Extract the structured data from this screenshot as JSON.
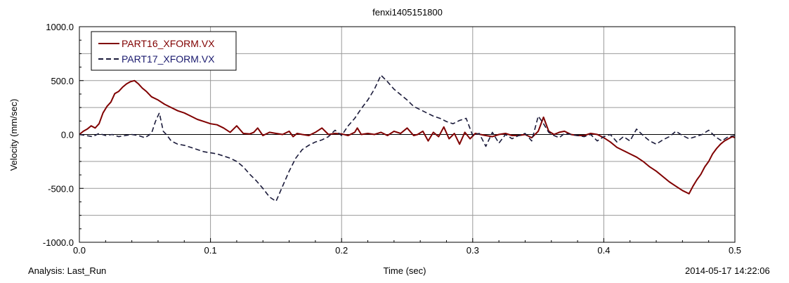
{
  "chart_data": {
    "type": "line",
    "title": "fenxi1405151800",
    "xlabel": "Time (sec)",
    "ylabel": "Velocity (mm/sec)",
    "xlim": [
      0.0,
      0.5
    ],
    "ylim": [
      -1000.0,
      1000.0
    ],
    "x_ticks": [
      0.0,
      0.1,
      0.2,
      0.3,
      0.4,
      0.5
    ],
    "x_tick_labels": [
      "0.0",
      "0.1",
      "0.2",
      "0.3",
      "0.4",
      "0.5"
    ],
    "y_ticks": [
      1000.0,
      500.0,
      0.0,
      -500.0,
      -1000.0
    ],
    "y_tick_labels": [
      "1000.0",
      "500.0",
      "0.0",
      "-500.0",
      "-1000.0"
    ],
    "grid": true,
    "legend_position": "top-left",
    "series": [
      {
        "name": "PART16_XFORM.VX",
        "color": "#800000",
        "style": "solid",
        "x": [
          0.0,
          0.003,
          0.006,
          0.009,
          0.012,
          0.015,
          0.018,
          0.021,
          0.024,
          0.027,
          0.03,
          0.033,
          0.036,
          0.039,
          0.042,
          0.045,
          0.048,
          0.051,
          0.055,
          0.06,
          0.065,
          0.07,
          0.075,
          0.08,
          0.085,
          0.09,
          0.095,
          0.1,
          0.105,
          0.11,
          0.115,
          0.12,
          0.125,
          0.13,
          0.133,
          0.136,
          0.14,
          0.145,
          0.15,
          0.155,
          0.16,
          0.163,
          0.166,
          0.17,
          0.175,
          0.18,
          0.185,
          0.19,
          0.195,
          0.2,
          0.205,
          0.21,
          0.212,
          0.215,
          0.22,
          0.225,
          0.23,
          0.235,
          0.24,
          0.245,
          0.25,
          0.255,
          0.258,
          0.262,
          0.266,
          0.27,
          0.274,
          0.278,
          0.282,
          0.286,
          0.29,
          0.294,
          0.298,
          0.302,
          0.306,
          0.31,
          0.315,
          0.32,
          0.325,
          0.33,
          0.335,
          0.34,
          0.345,
          0.35,
          0.354,
          0.358,
          0.362,
          0.366,
          0.37,
          0.375,
          0.38,
          0.385,
          0.39,
          0.395,
          0.4,
          0.405,
          0.41,
          0.415,
          0.42,
          0.425,
          0.43,
          0.435,
          0.44,
          0.445,
          0.45,
          0.455,
          0.46,
          0.465,
          0.468,
          0.471,
          0.474,
          0.477,
          0.48,
          0.483,
          0.486,
          0.489,
          0.492,
          0.495,
          0.498,
          0.5
        ],
        "y": [
          0,
          30,
          50,
          80,
          60,
          100,
          200,
          260,
          300,
          380,
          400,
          440,
          470,
          490,
          500,
          470,
          430,
          400,
          350,
          320,
          280,
          250,
          220,
          200,
          170,
          140,
          120,
          100,
          90,
          60,
          20,
          80,
          10,
          5,
          20,
          60,
          -10,
          20,
          10,
          0,
          30,
          -20,
          10,
          0,
          -10,
          20,
          60,
          0,
          10,
          5,
          -10,
          20,
          60,
          0,
          10,
          0,
          20,
          -10,
          30,
          10,
          60,
          -10,
          0,
          30,
          -60,
          20,
          -20,
          70,
          -40,
          10,
          -90,
          20,
          -40,
          10,
          0,
          -10,
          -20,
          0,
          10,
          -10,
          -10,
          0,
          -30,
          30,
          160,
          30,
          0,
          20,
          30,
          0,
          -10,
          -10,
          10,
          0,
          -30,
          -70,
          -120,
          -150,
          -180,
          -210,
          -250,
          -300,
          -340,
          -390,
          -440,
          -480,
          -520,
          -550,
          -480,
          -420,
          -370,
          -300,
          -250,
          -180,
          -130,
          -90,
          -60,
          -40,
          -20,
          -30
        ],
        "label_color": "#800000"
      },
      {
        "name": "PART17_XFORM.VX",
        "color": "#1a1a3a",
        "style": "dashed",
        "x": [
          0.0,
          0.005,
          0.01,
          0.015,
          0.02,
          0.025,
          0.03,
          0.035,
          0.04,
          0.045,
          0.05,
          0.055,
          0.058,
          0.061,
          0.064,
          0.067,
          0.07,
          0.075,
          0.08,
          0.085,
          0.09,
          0.095,
          0.1,
          0.105,
          0.11,
          0.115,
          0.12,
          0.125,
          0.13,
          0.135,
          0.14,
          0.145,
          0.15,
          0.155,
          0.16,
          0.165,
          0.17,
          0.175,
          0.18,
          0.185,
          0.19,
          0.195,
          0.2,
          0.205,
          0.21,
          0.215,
          0.22,
          0.225,
          0.23,
          0.235,
          0.24,
          0.245,
          0.25,
          0.255,
          0.26,
          0.265,
          0.27,
          0.275,
          0.28,
          0.285,
          0.29,
          0.295,
          0.3,
          0.305,
          0.31,
          0.315,
          0.32,
          0.325,
          0.33,
          0.335,
          0.34,
          0.345,
          0.35,
          0.354,
          0.358,
          0.362,
          0.366,
          0.37,
          0.375,
          0.38,
          0.385,
          0.39,
          0.395,
          0.4,
          0.405,
          0.41,
          0.415,
          0.42,
          0.425,
          0.43,
          0.435,
          0.44,
          0.445,
          0.45,
          0.455,
          0.46,
          0.465,
          0.47,
          0.475,
          0.48,
          0.485,
          0.49,
          0.495,
          0.5
        ],
        "y": [
          0,
          -10,
          -20,
          10,
          -10,
          0,
          -20,
          -10,
          0,
          -10,
          -30,
          10,
          120,
          200,
          30,
          -10,
          -60,
          -90,
          -100,
          -120,
          -140,
          -160,
          -170,
          -180,
          -200,
          -220,
          -250,
          -300,
          -370,
          -430,
          -500,
          -580,
          -620,
          -480,
          -340,
          -220,
          -140,
          -100,
          -70,
          -50,
          -20,
          40,
          -10,
          80,
          150,
          240,
          320,
          420,
          550,
          490,
          420,
          370,
          320,
          260,
          230,
          200,
          170,
          150,
          120,
          100,
          130,
          150,
          -10,
          10,
          -110,
          20,
          -80,
          0,
          -40,
          -10,
          10,
          -60,
          170,
          100,
          20,
          -10,
          -30,
          10,
          0,
          -10,
          -20,
          0,
          -60,
          -20,
          0,
          -70,
          -20,
          -60,
          50,
          -10,
          -60,
          -90,
          -50,
          -20,
          30,
          -10,
          -40,
          -20,
          0,
          40,
          -20,
          -60,
          -20,
          -10
        ]
      }
    ]
  },
  "footer": {
    "analysis": "Analysis:  Last_Run",
    "timestamp": "2014-05-17 14:22:06"
  }
}
